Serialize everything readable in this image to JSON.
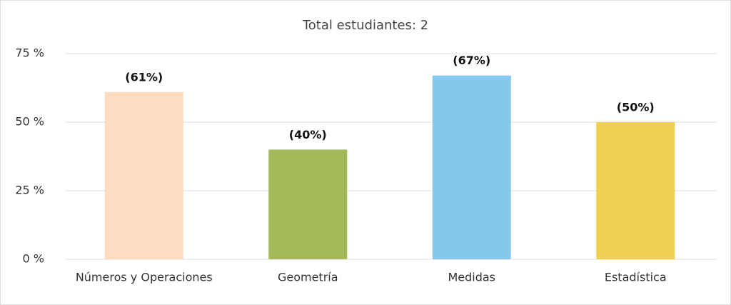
{
  "chart_data": {
    "type": "bar",
    "title": "Total estudiantes: 2",
    "categories": [
      "Números y Operaciones",
      "Geometría",
      "Medidas",
      "Estadística"
    ],
    "values": [
      61,
      40,
      67,
      50
    ],
    "value_labels": [
      "(61%)",
      "(40%)",
      "(67%)",
      "(50%)"
    ],
    "colors": [
      "#fddcc2",
      "#a4b85a",
      "#86c8ec",
      "#f0d050"
    ],
    "ylim": [
      0,
      75
    ],
    "yticks": [
      {
        "value": 0,
        "label": "0 %"
      },
      {
        "value": 25,
        "label": "25 %"
      },
      {
        "value": 50,
        "label": "50 %"
      },
      {
        "value": 75,
        "label": "75 %"
      }
    ],
    "grid": true
  }
}
